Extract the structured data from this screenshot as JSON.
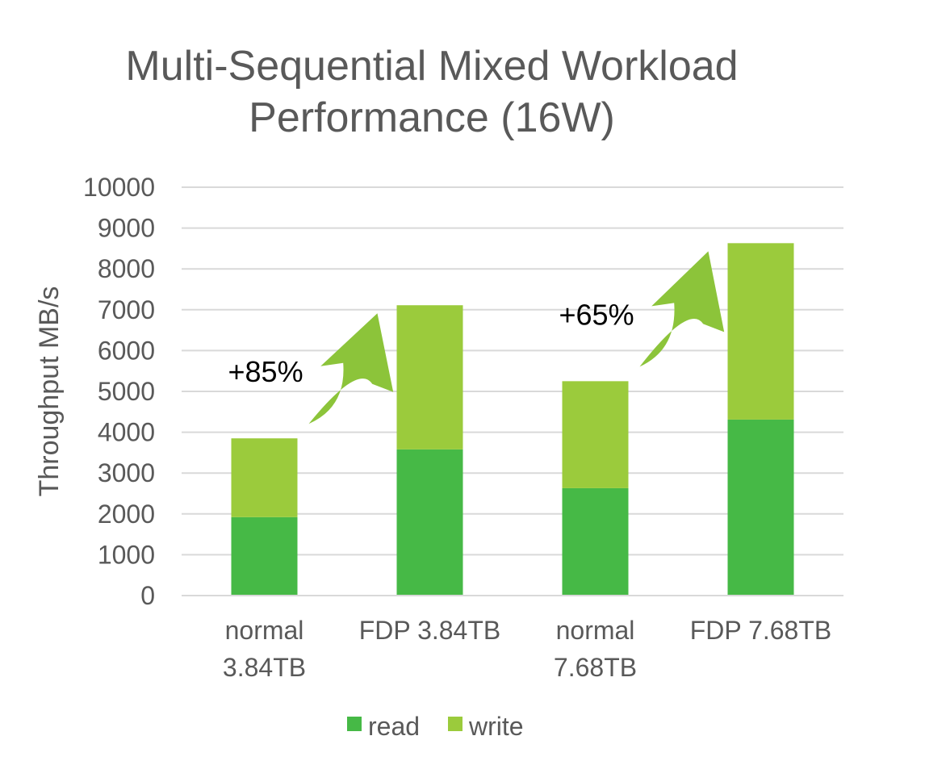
{
  "chart_data": {
    "type": "bar",
    "stacked": true,
    "title": "Multi-Sequential Mixed Workload Performance (16W)",
    "title_lines": [
      "Multi-Sequential Mixed Workload",
      "Performance (16W)"
    ],
    "ylabel": "Throughput MB/s",
    "xlabel": "",
    "ylim": [
      0,
      10000
    ],
    "yticks": [
      0,
      1000,
      2000,
      3000,
      4000,
      5000,
      6000,
      7000,
      8000,
      9000,
      10000
    ],
    "grid": true,
    "legend_position": "bottom",
    "categories": [
      [
        "normal",
        "3.84TB"
      ],
      [
        "FDP 3.84TB"
      ],
      [
        "normal",
        "7.68TB"
      ],
      [
        "FDP 7.68TB"
      ]
    ],
    "series": [
      {
        "name": "read",
        "color": "#46b946",
        "values": [
          1920,
          3580,
          2630,
          4310
        ]
      },
      {
        "name": "write",
        "color": "#9bcb3c",
        "values": [
          1930,
          3530,
          2620,
          4320
        ]
      }
    ],
    "annotations": [
      {
        "text": "+85%",
        "from_category": 0,
        "to_category": 1
      },
      {
        "text": "+65%",
        "from_category": 2,
        "to_category": 3
      }
    ],
    "arrow_color": "#8cc43a"
  }
}
